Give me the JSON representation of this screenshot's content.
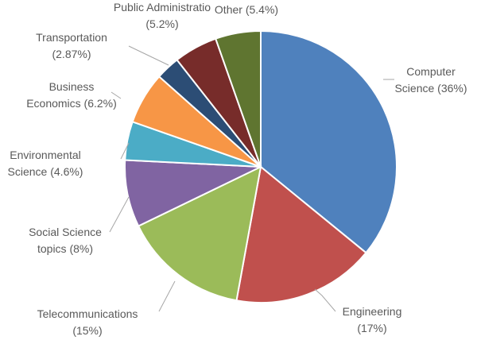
{
  "chart_data": {
    "type": "pie",
    "title": "",
    "slices": [
      {
        "name": "Computer Science",
        "value": 36,
        "label_lines": [
          "Computer",
          "Science (36%)"
        ],
        "color": "#4f81bd"
      },
      {
        "name": "Engineering",
        "value": 17,
        "label_lines": [
          "Engineering",
          "(17%)"
        ],
        "color": "#c0504d"
      },
      {
        "name": "Telecommunications",
        "value": 15,
        "label_lines": [
          "Telecommunications",
          "(15%)"
        ],
        "color": "#9bbb59"
      },
      {
        "name": "Social Science topics",
        "value": 8,
        "label_lines": [
          "Social Science",
          "topics (8%)"
        ],
        "color": "#8064a2"
      },
      {
        "name": "Environmental Science",
        "value": 4.6,
        "label_lines": [
          "Environmental",
          "Science (4.6%)"
        ],
        "color": "#4bacc6"
      },
      {
        "name": "Business Economics",
        "value": 6.2,
        "label_lines": [
          "Business",
          "Economics (6.2%)"
        ],
        "color": "#f79646"
      },
      {
        "name": "Transportation",
        "value": 2.87,
        "label_lines": [
          "Transportation",
          "(2.87%)"
        ],
        "color": "#2c4d75"
      },
      {
        "name": "Public Administration",
        "value": 5.2,
        "label_lines": [
          "Public Administratio",
          "(5.2%)"
        ],
        "color": "#772c2a"
      },
      {
        "name": "Other",
        "value": 5.4,
        "label_lines": [
          "Other (5.4%)"
        ],
        "color": "#5f7530"
      }
    ]
  }
}
